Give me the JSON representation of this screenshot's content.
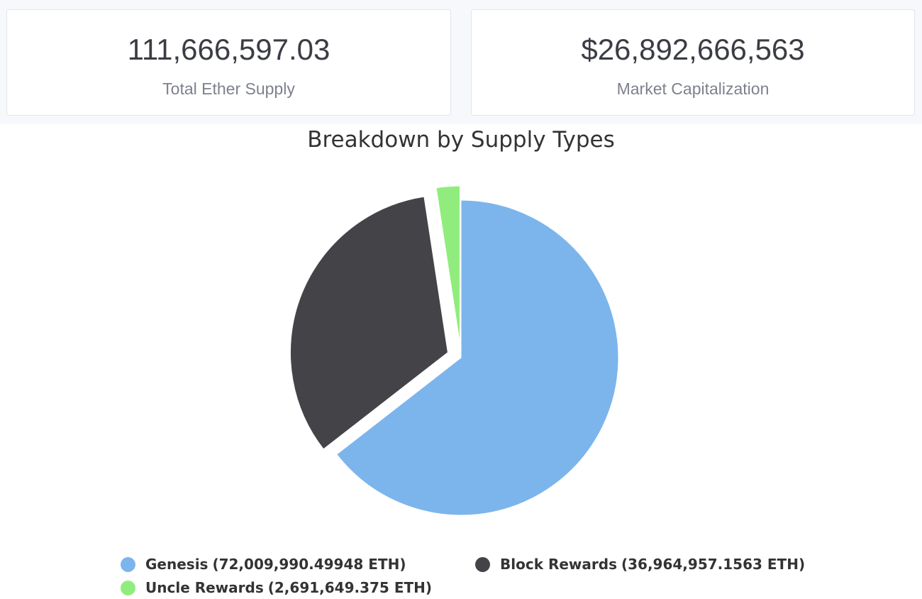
{
  "stats": {
    "total_supply": {
      "value": "111,666,597.03",
      "label": "Total Ether Supply"
    },
    "market_cap": {
      "value": "$26,892,666,563",
      "label": "Market Capitalization"
    }
  },
  "chart_data": {
    "type": "pie",
    "title": "Breakdown by Supply Types",
    "unit": "ETH",
    "slices": [
      {
        "name": "Genesis",
        "value": 72009990.49948,
        "value_label": "72,009,990.49948",
        "color": "#7cb5ec"
      },
      {
        "name": "Block Rewards",
        "value": 36964957.1563,
        "value_label": "36,964,957.1563",
        "color": "#434348"
      },
      {
        "name": "Uncle Rewards",
        "value": 2691649.375,
        "value_label": "2,691,649.375",
        "color": "#90ed7d"
      }
    ],
    "legend_position": "bottom"
  }
}
